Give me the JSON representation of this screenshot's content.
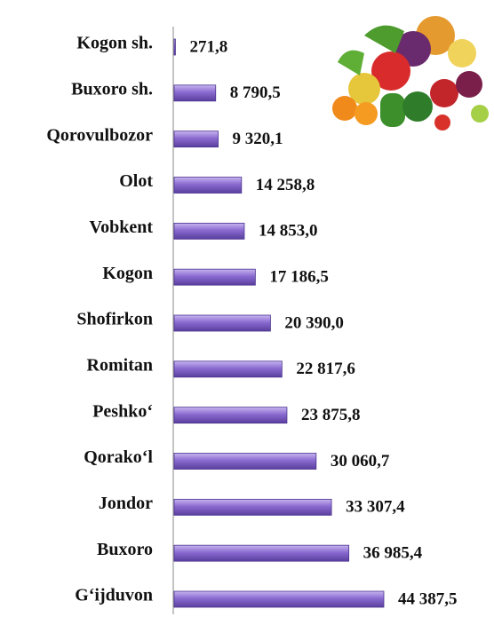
{
  "chart_data": {
    "type": "bar",
    "orientation": "horizontal",
    "categories": [
      "Kogon sh.",
      "Buxoro sh.",
      "Qorovulbozor",
      "Olot",
      "Vobkent",
      "Kogon",
      "Shofirkon",
      "Romitan",
      "Peshko‘",
      "Qorako‘l",
      "Jondor",
      "Buxoro",
      "G‘ijduvon"
    ],
    "values": [
      271.8,
      8790.5,
      9320.1,
      14258.8,
      14853.0,
      17186.5,
      20390.0,
      22817.6,
      23875.8,
      30060.7,
      33307.4,
      36985.4,
      44387.5
    ],
    "value_labels": [
      "271,8",
      "8 790,5",
      "9 320,1",
      "14 258,8",
      "14 853,0",
      "17 186,5",
      "20 390,0",
      "22 817,6",
      "23 875,8",
      "30 060,7",
      "33 307,4",
      "36 985,4",
      "44 387,5"
    ],
    "color": "#8566c8"
  }
}
